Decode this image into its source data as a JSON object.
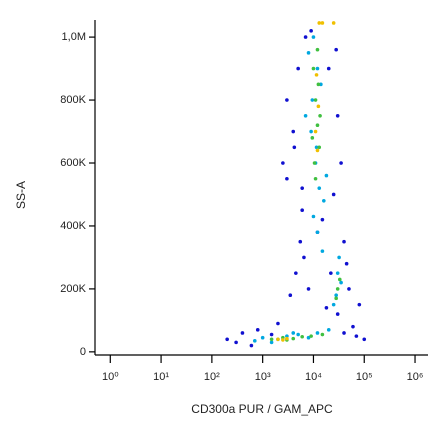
{
  "chart_data": {
    "type": "scatter",
    "xlabel": "CD300a PUR / GAM_APC",
    "ylabel": "SS-A",
    "xscale": "log",
    "xlim": [
      0.5,
      1800000
    ],
    "xticks": [
      {
        "value": 1,
        "label": "10⁰"
      },
      {
        "value": 10,
        "label": "10¹"
      },
      {
        "value": 100,
        "label": "10²"
      },
      {
        "value": 1000,
        "label": "10³"
      },
      {
        "value": 10000,
        "label": "10⁴"
      },
      {
        "value": 100000,
        "label": "10⁵"
      },
      {
        "value": 1000000,
        "label": "10⁶"
      }
    ],
    "ylim": [
      -10000,
      1048000
    ],
    "yticks": [
      0,
      {
        "value": 200000,
        "label": "200K"
      },
      {
        "value": 400000,
        "label": "400K"
      },
      {
        "value": 600000,
        "label": "600K"
      },
      {
        "value": 800000,
        "label": "800K"
      },
      {
        "value": 1000000,
        "label": "1,0M"
      }
    ],
    "series": [
      {
        "color": "#1010d0",
        "x": [
          2500,
          4000,
          6000,
          3000,
          5000,
          7000,
          20000,
          30000,
          25000,
          5500,
          4500,
          6500,
          8000,
          3500,
          40000,
          30000,
          50000,
          60000,
          300,
          200,
          400,
          600,
          800,
          40000,
          70000,
          15000,
          3000,
          9000,
          12000,
          22000,
          18000,
          2000,
          1500,
          100000,
          80000,
          4200,
          6000,
          35000,
          28000,
          45000
        ],
        "values": [
          600000,
          700000,
          450000,
          800000,
          900000,
          1000000,
          900000,
          750000,
          500000,
          350000,
          250000,
          300000,
          200000,
          180000,
          350000,
          120000,
          200000,
          80000,
          30000,
          40000,
          60000,
          20000,
          70000,
          60000,
          50000,
          420000,
          550000,
          1020000,
          380000,
          250000,
          140000,
          90000,
          55000,
          40000,
          150000,
          650000,
          520000,
          600000,
          960000,
          280000
        ]
      },
      {
        "color": "#00a8e0",
        "x": [
          8000,
          10000,
          12000,
          14000,
          9000,
          11000,
          13000,
          16000,
          7000,
          10000,
          12000,
          15000,
          9500,
          11500,
          18000,
          30000,
          28000,
          35000,
          25000,
          32000,
          1000,
          2000,
          3000,
          5000,
          8000,
          12000,
          20000,
          700,
          1500,
          4000
        ],
        "values": [
          950000,
          1000000,
          900000,
          850000,
          700000,
          600000,
          520000,
          480000,
          750000,
          430000,
          380000,
          320000,
          800000,
          650000,
          560000,
          250000,
          180000,
          220000,
          150000,
          300000,
          45000,
          40000,
          50000,
          55000,
          45000,
          60000,
          70000,
          35000,
          30000,
          60000
        ]
      },
      {
        "color": "#40c040",
        "x": [
          10000,
          11000,
          12000,
          13000,
          10500,
          12500,
          11000,
          13500,
          9500,
          12000,
          30000,
          33000,
          28000,
          1500,
          2500,
          4000,
          6000,
          9000,
          15000,
          3000
        ],
        "values": [
          900000,
          800000,
          720000,
          650000,
          600000,
          850000,
          550000,
          750000,
          680000,
          960000,
          200000,
          230000,
          170000,
          40000,
          45000,
          42000,
          48000,
          50000,
          55000,
          38000
        ]
      },
      {
        "color": "#f0c000",
        "x": [
          11000,
          12000,
          12500,
          11500,
          2000,
          3000,
          2500,
          13000,
          25000,
          15000
        ],
        "values": [
          700000,
          640000,
          780000,
          880000,
          40000,
          42000,
          38000,
          1045000,
          1045000,
          1045000
        ]
      }
    ]
  }
}
